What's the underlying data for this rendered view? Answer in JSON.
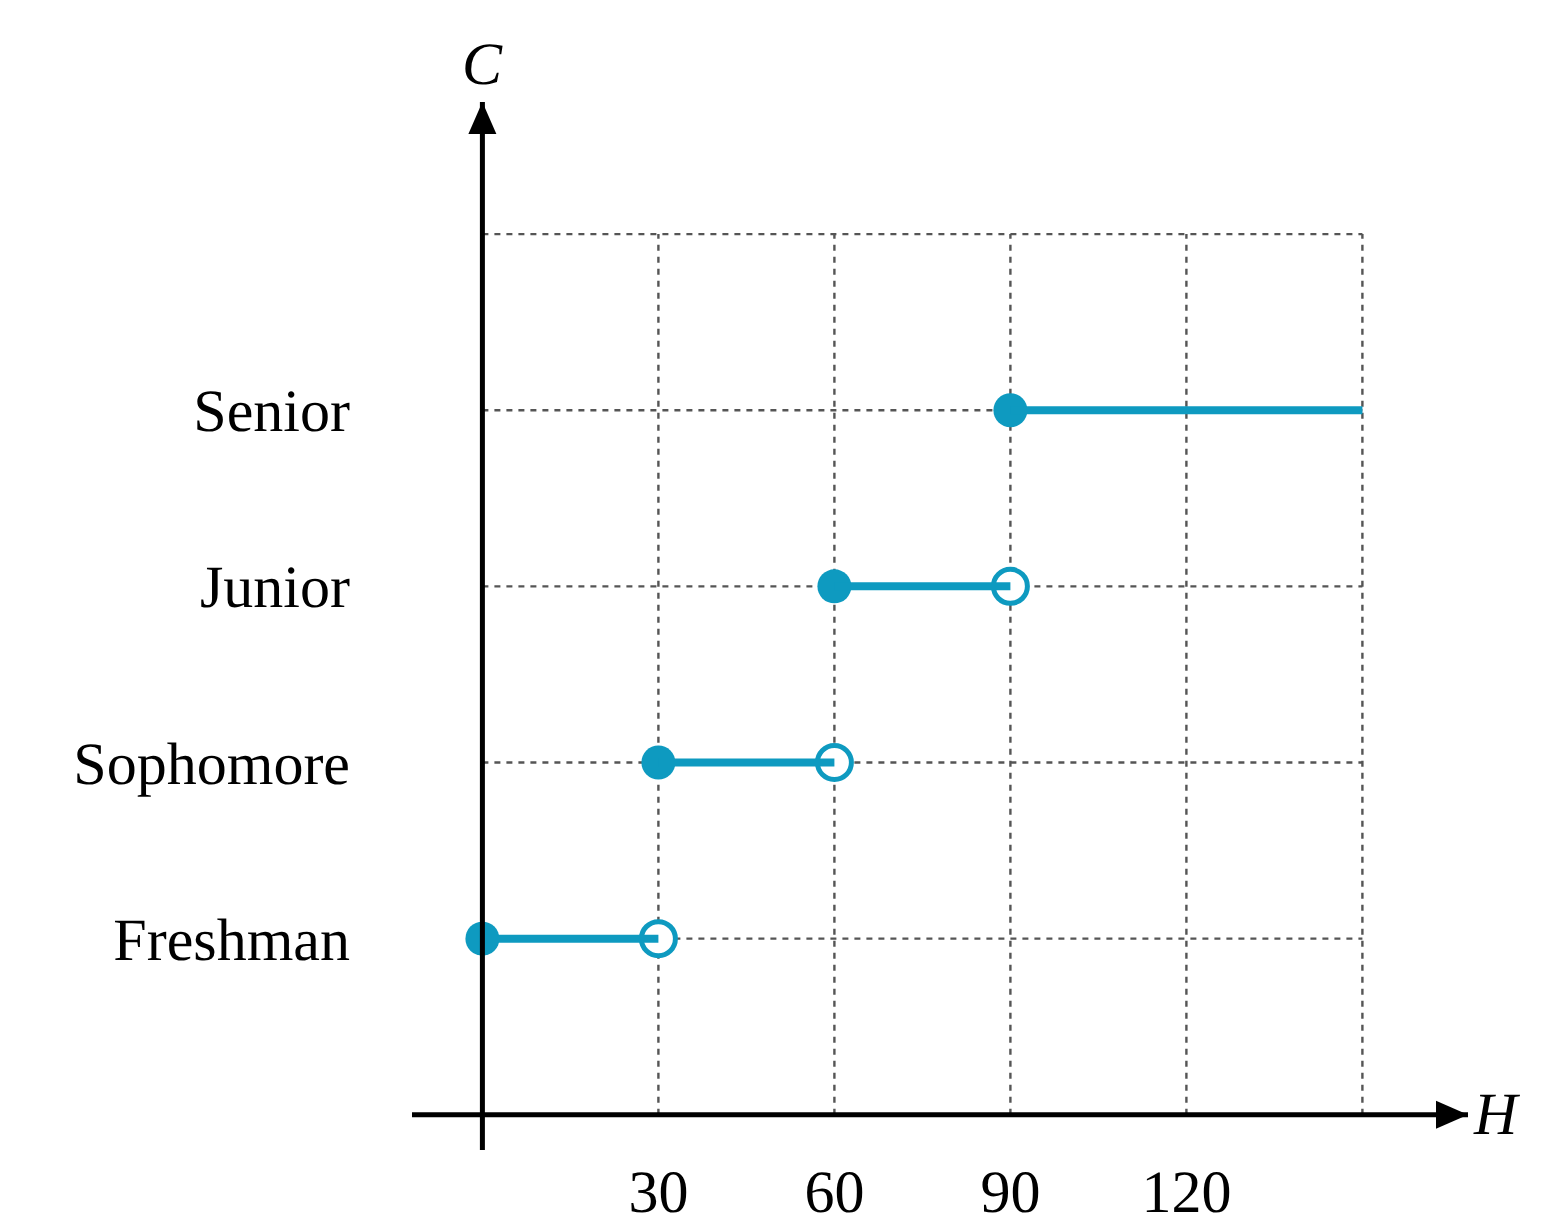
{
  "chart_data": {
    "type": "bar",
    "orientation": "horizontal",
    "xlabel": "H",
    "ylabel": "C",
    "xlim": [
      -12,
      168
    ],
    "xticks": [
      30,
      60,
      90,
      120,
      {
        "value": 150,
        "label": null
      }
    ],
    "categories": [
      null,
      "Senior",
      "Junior",
      "Sophomore",
      "Freshman"
    ],
    "grid": true,
    "series": [
      {
        "color": "#0e9ac0",
        "base": [
          null,
          90,
          60,
          30,
          0
        ],
        "values": [
          null,
          60,
          30,
          30,
          30
        ]
      },
      {
        "type": "scatter",
        "marker": "circle",
        "color": "#0e9ac0",
        "values": [
          null,
          90,
          60,
          30,
          0
        ]
      },
      {
        "type": "scatter",
        "marker": "circle-open",
        "color": "#0e9ac0",
        "values": [
          null,
          null,
          90,
          60,
          30
        ]
      }
    ]
  }
}
